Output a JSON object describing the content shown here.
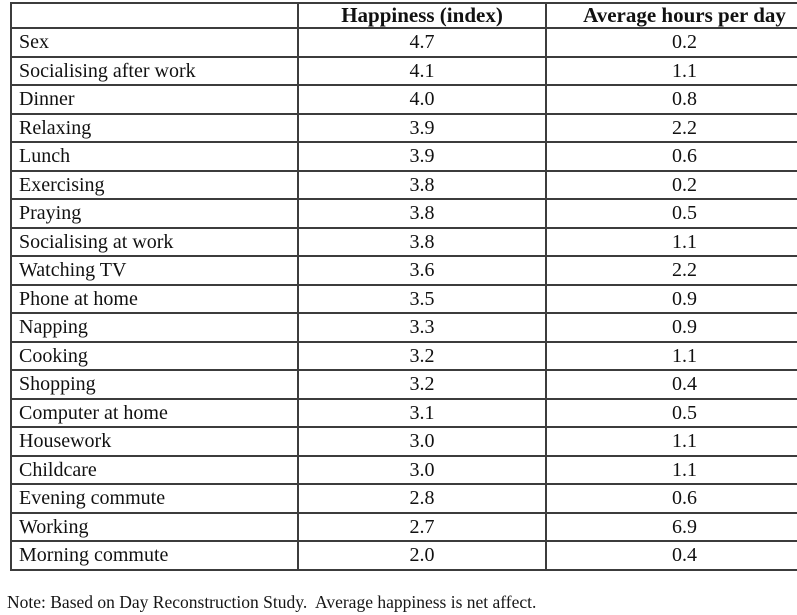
{
  "chart_data": {
    "type": "table",
    "title": "",
    "columns": [
      "",
      "Happiness (index)",
      "Average hours per day"
    ],
    "rows": [
      [
        "Sex",
        "4.7",
        "0.2"
      ],
      [
        "Socialising after work",
        "4.1",
        "1.1"
      ],
      [
        "Dinner",
        "4.0",
        "0.8"
      ],
      [
        "Relaxing",
        "3.9",
        "2.2"
      ],
      [
        "Lunch",
        "3.9",
        "0.6"
      ],
      [
        "Exercising",
        "3.8",
        "0.2"
      ],
      [
        "Praying",
        "3.8",
        "0.5"
      ],
      [
        "Socialising at work",
        "3.8",
        "1.1"
      ],
      [
        "Watching TV",
        "3.6",
        "2.2"
      ],
      [
        "Phone at home",
        "3.5",
        "0.9"
      ],
      [
        "Napping",
        "3.3",
        "0.9"
      ],
      [
        "Cooking",
        "3.2",
        "1.1"
      ],
      [
        "Shopping",
        "3.2",
        "0.4"
      ],
      [
        "Computer at home",
        "3.1",
        "0.5"
      ],
      [
        "Housework",
        "3.0",
        "1.1"
      ],
      [
        "Childcare",
        "3.0",
        "1.1"
      ],
      [
        "Evening commute",
        "2.8",
        "0.6"
      ],
      [
        "Working",
        "2.7",
        "6.9"
      ],
      [
        "Morning commute",
        "2.0",
        "0.4"
      ]
    ]
  },
  "table": {
    "columns": [
      "",
      "Happiness (index)",
      "Average hours per day"
    ],
    "rows": [
      [
        "Sex",
        "4.7",
        "0.2"
      ],
      [
        "Socialising after work",
        "4.1",
        "1.1"
      ],
      [
        "Dinner",
        "4.0",
        "0.8"
      ],
      [
        "Relaxing",
        "3.9",
        "2.2"
      ],
      [
        "Lunch",
        "3.9",
        "0.6"
      ],
      [
        "Exercising",
        "3.8",
        "0.2"
      ],
      [
        "Praying",
        "3.8",
        "0.5"
      ],
      [
        "Socialising at work",
        "3.8",
        "1.1"
      ],
      [
        "Watching TV",
        "3.6",
        "2.2"
      ],
      [
        "Phone at home",
        "3.5",
        "0.9"
      ],
      [
        "Napping",
        "3.3",
        "0.9"
      ],
      [
        "Cooking",
        "3.2",
        "1.1"
      ],
      [
        "Shopping",
        "3.2",
        "0.4"
      ],
      [
        "Computer at home",
        "3.1",
        "0.5"
      ],
      [
        "Housework",
        "3.0",
        "1.1"
      ],
      [
        "Childcare",
        "3.0",
        "1.1"
      ],
      [
        "Evening commute",
        "2.8",
        "0.6"
      ],
      [
        "Working",
        "2.7",
        "6.9"
      ],
      [
        "Morning commute",
        "2.0",
        "0.4"
      ]
    ]
  },
  "note": "Note: Based on Day Reconstruction Study.  Average happiness is net affect.",
  "colors": {
    "background": "#ffffff",
    "text": "#111111",
    "border": "#3c3c3c"
  }
}
